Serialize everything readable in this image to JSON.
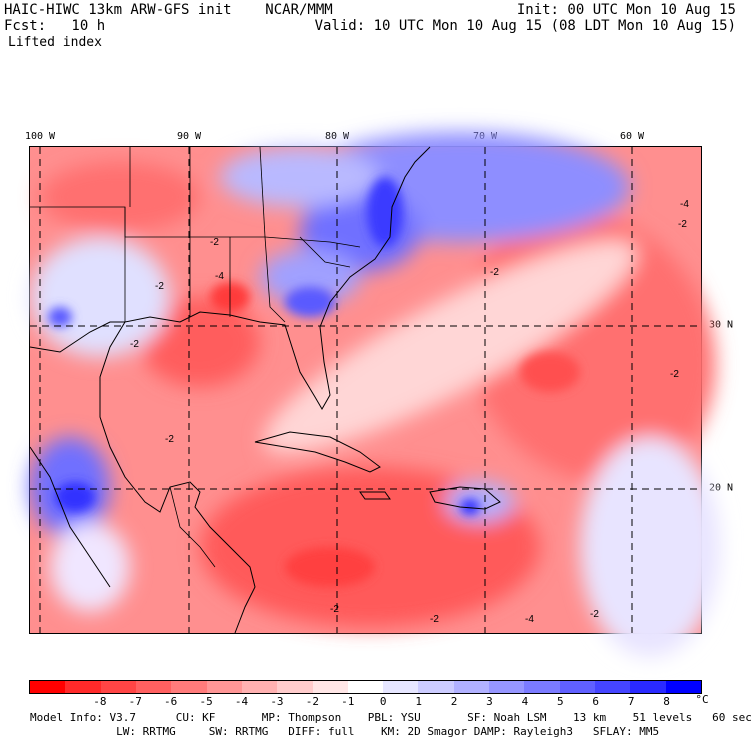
{
  "header": {
    "title": "HAIC-HIWC 13km ARW-GFS init    NCAR/MMM",
    "init": "Init: 00 UTC Mon 10 Aug 15",
    "fcst": "Fcst:   10 h",
    "valid": "Valid: 10 UTC Mon 10 Aug 15 (08 LDT Mon 10 Aug 15)",
    "field": "Lifted index"
  },
  "axes": {
    "lon_labels": [
      "100 W",
      "90 W",
      "80 W",
      "70 W",
      "60 W"
    ],
    "lat_labels": [
      "30 N",
      "20 N"
    ]
  },
  "colorbar": {
    "colors": [
      "#ff0000",
      "#ff2a2a",
      "#ff4545",
      "#ff6060",
      "#ff7b7b",
      "#ff9696",
      "#ffb1b1",
      "#ffcccc",
      "#ffe6e6",
      "#ffffff",
      "#e6e6ff",
      "#ccccff",
      "#b1b1ff",
      "#9696ff",
      "#7b7bff",
      "#6060ff",
      "#4545ff",
      "#2a2aff",
      "#0000ff"
    ],
    "labels": [
      "-8",
      "-7",
      "-6",
      "-5",
      "-4",
      "-3",
      "-2",
      "-1",
      "0",
      "1",
      "2",
      "3",
      "4",
      "5",
      "6",
      "7",
      "8"
    ],
    "unit": "°C"
  },
  "model_info": {
    "line1": "Model Info: V3.7      CU: KF       MP: Thompson    PBL: YSU       SF: Noah LSM    13 km    51 levels   60 sec",
    "line2": "             LW: RRTMG     SW: RRTMG   DIFF: full    KM: 2D Smagor DAMP: Rayleigh3   SFLAY: MM5"
  },
  "map": {
    "contour_labels": [
      "-2",
      "-2",
      "-4",
      "-2",
      "-2",
      "-2",
      "-2",
      "-2",
      "-2",
      "-4",
      "-2",
      "-4",
      "-2"
    ]
  }
}
